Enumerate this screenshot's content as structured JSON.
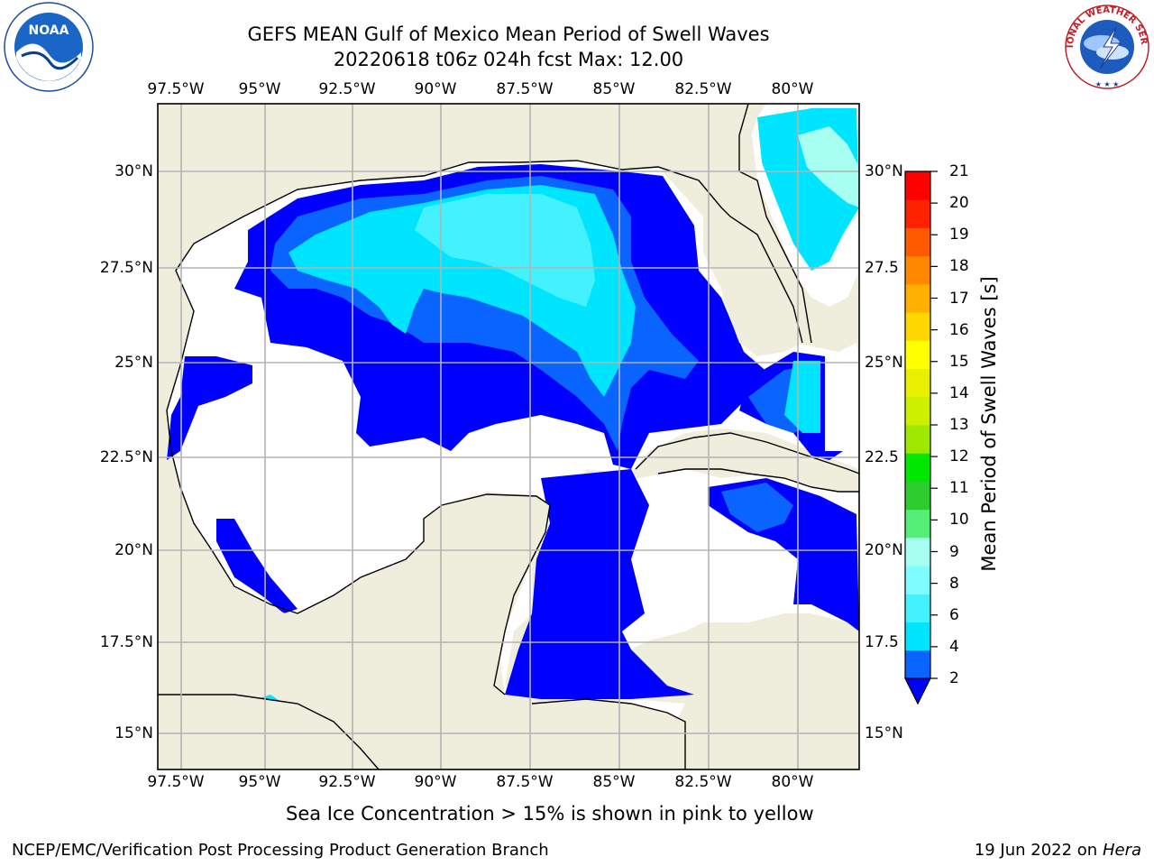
{
  "title_line1": "GEFS MEAN Gulf of Mexico Mean Period of Swell Waves",
  "title_line2": "20220618 t06z 024h fcst   Max: 12.00",
  "lon_labels": [
    "97.5°W",
    "95°W",
    "92.5°W",
    "90°W",
    "87.5°W",
    "85°W",
    "82.5°W",
    "80°W"
  ],
  "lat_labels_left": [
    "30°N",
    "27.5°N",
    "25°N",
    "22.5°N",
    "20°N",
    "17.5°N",
    "15°N"
  ],
  "lat_labels_right": [
    "30°N",
    "27.5",
    "25°N",
    "22.5",
    "20°N",
    "17.5",
    "15°N"
  ],
  "colorbar": {
    "label": "Mean Period of Swell Waves [s]",
    "ticks": [
      "2",
      "4",
      "6",
      "8",
      "9",
      "10",
      "11",
      "12",
      "13",
      "14",
      "15",
      "16",
      "17",
      "18",
      "19",
      "20",
      "21"
    ],
    "colors": [
      "#0a64ff",
      "#00e5ff",
      "#44f2ff",
      "#7ffcff",
      "#a6fff0",
      "#55ee77",
      "#2ecc2e",
      "#00e800",
      "#9fe800",
      "#ccf000",
      "#e8f000",
      "#ffff00",
      "#ffd700",
      "#ffb000",
      "#ff8800",
      "#ff5a00",
      "#ff2200",
      "#ff0000"
    ],
    "extend_color": "#0000ff"
  },
  "map_colors": {
    "land": "#efeedd",
    "ocean_none": "#ffffff",
    "grid": "#b3b3b3"
  },
  "note": "Sea Ice Concentration > 15% is shown in pink to yellow",
  "footer_left": "NCEP/EMC/Verification Post Processing Product Generation Branch",
  "footer_date": "19 Jun 2022 on",
  "footer_host": "Hera",
  "logos": {
    "left": "NOAA",
    "right": "NATIONAL WEATHER SERVICE"
  }
}
